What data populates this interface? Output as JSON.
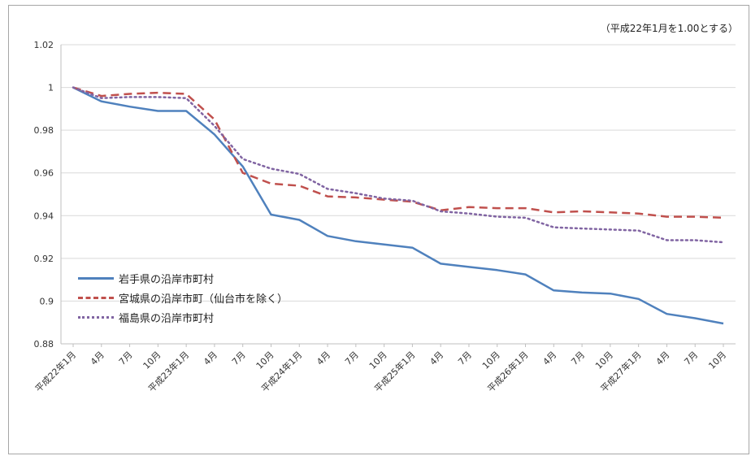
{
  "chart_data": {
    "type": "line",
    "title": "",
    "note": "（平成22年1月を1.00とする）",
    "xlabel": "",
    "ylabel": "",
    "ylim": [
      0.88,
      1.02
    ],
    "yticks": [
      "1.02",
      "1",
      "0.98",
      "0.96",
      "0.94",
      "0.92",
      "0.9",
      "0.88"
    ],
    "grid": true,
    "legend_position": "bottom-left",
    "categories": [
      "平成22年1月",
      "4月",
      "7月",
      "10月",
      "平成23年1月",
      "4月",
      "7月",
      "10月",
      "平成24年1月",
      "4月",
      "7月",
      "10月",
      "平成25年1月",
      "4月",
      "7月",
      "10月",
      "平成26年1月",
      "4月",
      "7月",
      "10月",
      "平成27年1月",
      "4月",
      "7月",
      "10月"
    ],
    "series": [
      {
        "name": "岩手県の沿岸市町村",
        "color": "#4f81bd",
        "style": "solid",
        "values": [
          1.0,
          0.9935,
          0.991,
          0.989,
          0.989,
          0.978,
          0.963,
          0.9405,
          0.938,
          0.9305,
          0.928,
          0.9265,
          0.925,
          0.9175,
          0.916,
          0.9145,
          0.9125,
          0.905,
          0.904,
          0.9035,
          0.901,
          0.894,
          0.892,
          0.8895
        ]
      },
      {
        "name": "宮城県の沿岸市町（仙台市を除く）",
        "color": "#c0504d",
        "style": "dashed",
        "values": [
          1.0,
          0.996,
          0.997,
          0.9975,
          0.997,
          0.985,
          0.96,
          0.955,
          0.954,
          0.949,
          0.9485,
          0.9475,
          0.9465,
          0.9425,
          0.944,
          0.9435,
          0.9435,
          0.9415,
          0.942,
          0.9415,
          0.941,
          0.9395,
          0.9395,
          0.939
        ]
      },
      {
        "name": "福島県の沿岸市町村",
        "color": "#8064a2",
        "style": "dotted",
        "values": [
          1.0,
          0.995,
          0.9955,
          0.9955,
          0.995,
          0.982,
          0.9665,
          0.962,
          0.9595,
          0.9525,
          0.9505,
          0.948,
          0.947,
          0.942,
          0.941,
          0.9395,
          0.939,
          0.9345,
          0.934,
          0.9335,
          0.933,
          0.9285,
          0.9285,
          0.9275
        ]
      }
    ]
  }
}
